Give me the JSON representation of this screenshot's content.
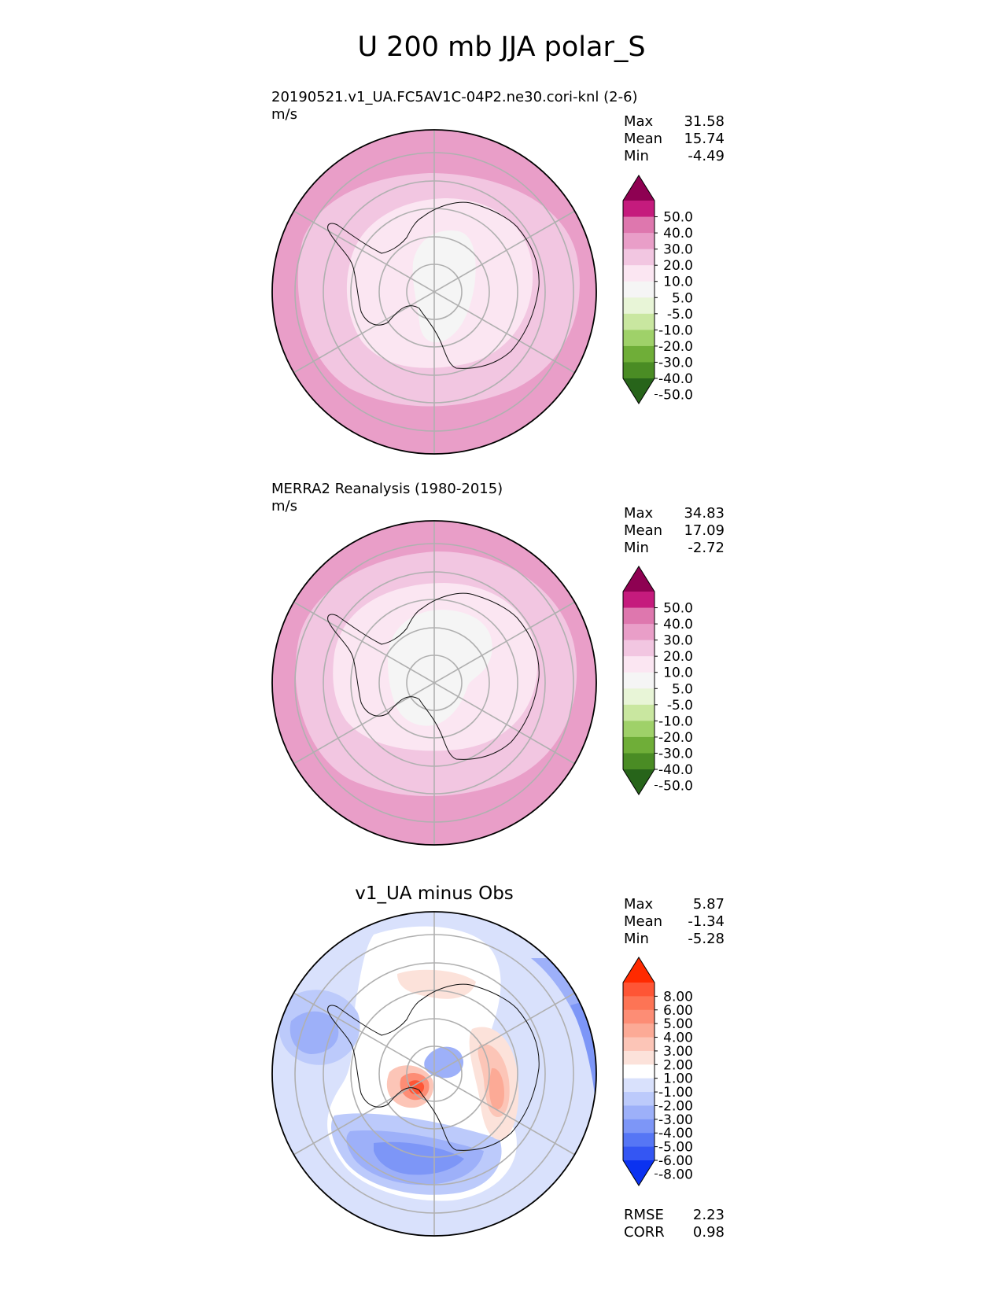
{
  "title": "U 200 mb JJA polar_S",
  "chart_data": [
    {
      "type": "heatmap",
      "projection": "south-polar-stereographic",
      "title_line1": "20190521.v1_UA.FC5AV1C-04P2.ne30.cori-knl (2-6)",
      "title_line2": "m/s",
      "stats": [
        {
          "label": "Max",
          "value": "31.58"
        },
        {
          "label": "Mean",
          "value": "15.74"
        },
        {
          "label": "Min",
          "value": "-4.49"
        }
      ],
      "colorbar": {
        "ticks": [
          "50.0",
          "40.0",
          "30.0",
          "20.0",
          "10.0",
          "5.0",
          "-5.0",
          "-10.0",
          "-20.0",
          "-30.0",
          "-40.0",
          "-50.0"
        ],
        "colors": [
          "#8e0152",
          "#c51b7d",
          "#de77ae",
          "#e99ec8",
          "#f2c6e1",
          "#fbe6f2",
          "#f5f5f5",
          "#e8f5d7",
          "#c9e7a0",
          "#9fd169",
          "#6fae38",
          "#4a8c24",
          "#27641a"
        ]
      }
    },
    {
      "type": "heatmap",
      "projection": "south-polar-stereographic",
      "title_line1": "MERRA2 Reanalysis (1980-2015)",
      "title_line2": "m/s",
      "stats": [
        {
          "label": "Max",
          "value": "34.83"
        },
        {
          "label": "Mean",
          "value": "17.09"
        },
        {
          "label": "Min",
          "value": "-2.72"
        }
      ],
      "colorbar": {
        "ticks": [
          "50.0",
          "40.0",
          "30.0",
          "20.0",
          "10.0",
          "5.0",
          "-5.0",
          "-10.0",
          "-20.0",
          "-30.0",
          "-40.0",
          "-50.0"
        ],
        "colors": [
          "#8e0152",
          "#c51b7d",
          "#de77ae",
          "#e99ec8",
          "#f2c6e1",
          "#fbe6f2",
          "#f5f5f5",
          "#e8f5d7",
          "#c9e7a0",
          "#9fd169",
          "#6fae38",
          "#4a8c24",
          "#27641a"
        ]
      }
    },
    {
      "type": "heatmap",
      "projection": "south-polar-stereographic",
      "title": "v1_UA minus Obs",
      "stats": [
        {
          "label": "Max",
          "value": "5.87"
        },
        {
          "label": "Mean",
          "value": "-1.34"
        },
        {
          "label": "Min",
          "value": "-5.28"
        }
      ],
      "metrics": [
        {
          "label": "RMSE",
          "value": "2.23"
        },
        {
          "label": "CORR",
          "value": "0.98"
        }
      ],
      "colorbar": {
        "ticks": [
          "8.00",
          "6.00",
          "5.00",
          "4.00",
          "3.00",
          "2.00",
          "1.00",
          "-1.00",
          "-2.00",
          "-3.00",
          "-4.00",
          "-5.00",
          "-6.00",
          "-8.00"
        ],
        "colors": [
          "#ff2a00",
          "#fe5535",
          "#fd7455",
          "#fd8d75",
          "#fcaa96",
          "#fcc5b7",
          "#fce2da",
          "#ffffff",
          "#d9e1fc",
          "#bccafb",
          "#9db0f9",
          "#7d96f7",
          "#5676f5",
          "#3456f3",
          "#0b32f0"
        ]
      }
    }
  ]
}
